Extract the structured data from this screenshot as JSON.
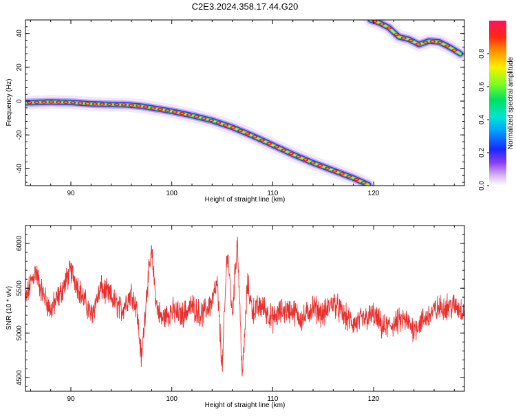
{
  "figure": {
    "title": "C2E3.2024.358.17.44.G20"
  },
  "chart_data": [
    {
      "type": "heatmap",
      "panel": "spectrogram",
      "xlabel": "Height of straight line (km)",
      "ylabel": "Frequency (Hz)",
      "xlim": [
        85.5,
        129
      ],
      "ylim": [
        -50,
        48
      ],
      "xticks": [
        90,
        100,
        110,
        120
      ],
      "yticks": [
        40,
        20,
        0,
        -20,
        -40
      ],
      "ridge_main": {
        "x": [
          85.5,
          88,
          90,
          92,
          94,
          95.5,
          97,
          98.5,
          100,
          102,
          104,
          106,
          108,
          110,
          112,
          114,
          116,
          118,
          119.5
        ],
        "y": [
          -1,
          -0.5,
          -0.8,
          -1.6,
          -2.0,
          -2.2,
          -3.0,
          -4.5,
          -6.0,
          -8.5,
          -11.5,
          -15.5,
          -20.5,
          -26.0,
          -31.5,
          -36.5,
          -41.0,
          -45.5,
          -49.5
        ]
      },
      "ridge_upper": {
        "x": [
          119.7,
          120.5,
          121.5,
          122.5,
          123.5,
          124.5,
          125.5,
          126.5,
          127.5,
          128.6
        ],
        "y": [
          48,
          46.5,
          43.5,
          38.0,
          36.5,
          33.5,
          35.5,
          35.0,
          32.0,
          28.0
        ]
      },
      "colorbar": {
        "label": "Normalized spectral amplitude",
        "ticks": [
          "0.0",
          "0.2",
          "0.4",
          "0.6",
          "0.8"
        ]
      },
      "colors": {
        "low": "#e6d5f5",
        "mid_low": "#2040ff",
        "mid": "#00e080",
        "mid_high": "#ffd700",
        "high": "#e8200a"
      }
    },
    {
      "type": "line",
      "panel": "snr",
      "xlabel": "Height of straight line (km)",
      "ylabel": "SNR (10 * v/v)",
      "xlim": [
        85.5,
        129
      ],
      "ylim": [
        4350,
        6200
      ],
      "xticks": [
        90,
        100,
        110,
        120
      ],
      "yticks": [
        6000,
        5500,
        5000,
        4500
      ],
      "series": [
        {
          "color": "#e8302e",
          "x": [
            85.5,
            86,
            86.5,
            87,
            88,
            89,
            90,
            91,
            92,
            93,
            94,
            95,
            96,
            96.5,
            97,
            97.5,
            98,
            98.5,
            99,
            100,
            101,
            102,
            103,
            104,
            104.5,
            105,
            105.5,
            106,
            106.5,
            107,
            107.5,
            108,
            109,
            110,
            111,
            112,
            113,
            114,
            115,
            116,
            117,
            118,
            119,
            120,
            121,
            122,
            123,
            124,
            125,
            126,
            127,
            128,
            129
          ],
          "y": [
            5350,
            5550,
            5700,
            5500,
            5250,
            5450,
            5700,
            5450,
            5200,
            5500,
            5400,
            5250,
            5450,
            5300,
            4700,
            5450,
            5900,
            5300,
            5150,
            5250,
            5200,
            5300,
            5200,
            5350,
            5550,
            4600,
            5950,
            5200,
            6050,
            4500,
            5550,
            5250,
            5300,
            5150,
            5250,
            5250,
            5150,
            5300,
            5200,
            5350,
            5200,
            5100,
            5150,
            5200,
            5050,
            5100,
            5150,
            5050,
            5150,
            5250,
            5300,
            5300,
            5250
          ]
        }
      ]
    }
  ]
}
